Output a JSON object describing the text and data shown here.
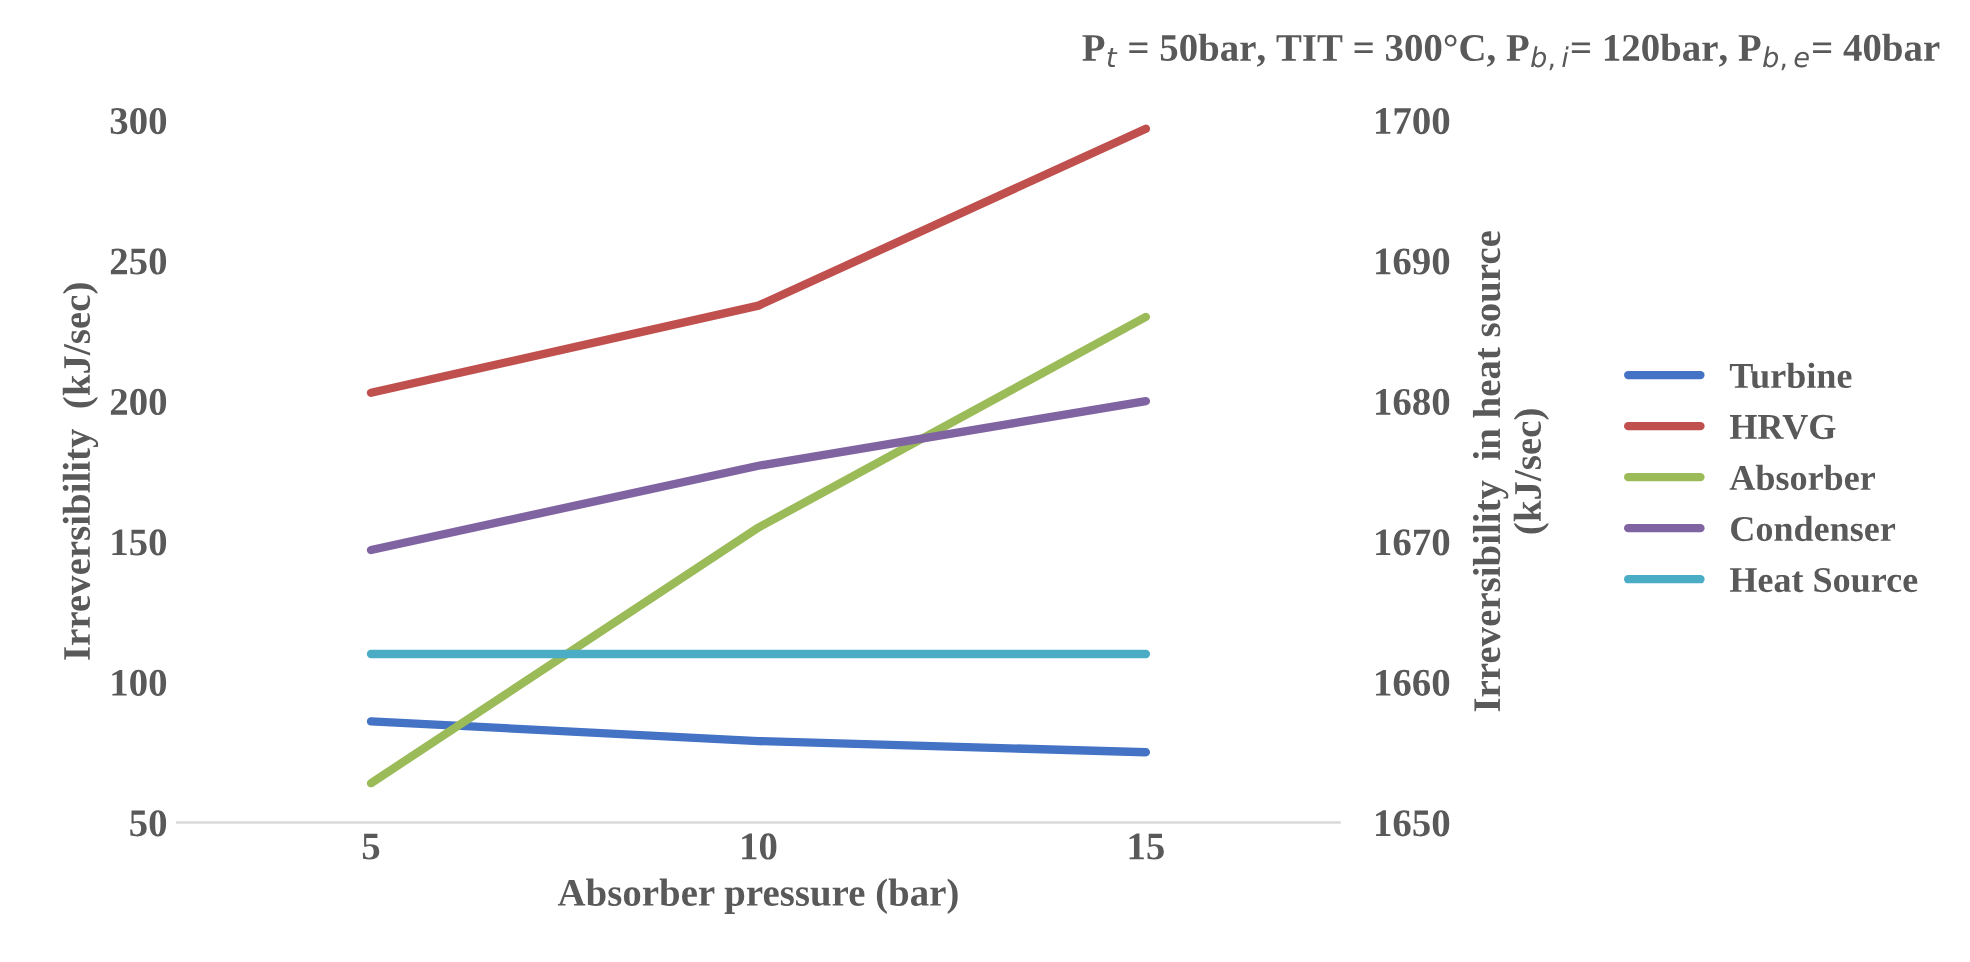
{
  "chart_data": {
    "type": "line",
    "title": "P$_{t}$ = 50bar, TIT = 300°C, P$_{b,i}$= 120bar, P$_{b,e}$= 40bar",
    "xlabel": "Absorber pressure (bar)",
    "ylabel": "Irreversibility  (kJ/sec)",
    "y2label": "Irreversibility  in heat source\n(kJ/sec)",
    "categories": [
      "5",
      "10",
      "15"
    ],
    "series": [
      {
        "name": "Turbine",
        "color": "#4472c4",
        "values": [
          86,
          79,
          75
        ]
      },
      {
        "name": "HRVG",
        "color": "#c0504d",
        "values": [
          203,
          234,
          297
        ]
      },
      {
        "name": "Absorber",
        "color": "#9bbb59",
        "values": [
          64,
          155,
          230
        ]
      },
      {
        "name": "Condenser",
        "color": "#8064a2",
        "values": [
          147,
          177,
          200
        ]
      },
      {
        "name": "Heat Source",
        "color": "#4bacc6",
        "values": [
          1662,
          1662,
          1662
        ],
        "axis": "y2"
      }
    ],
    "ylim": [
      50,
      300
    ],
    "yticks": [
      50,
      100,
      150,
      200,
      250,
      300
    ],
    "y2lim": [
      1650,
      1700
    ],
    "y2ticks": [
      1650,
      1660,
      1670,
      1680,
      1690,
      1700
    ],
    "legend": "right",
    "grid": false,
    "marker": "none",
    "line_style": "solid"
  }
}
